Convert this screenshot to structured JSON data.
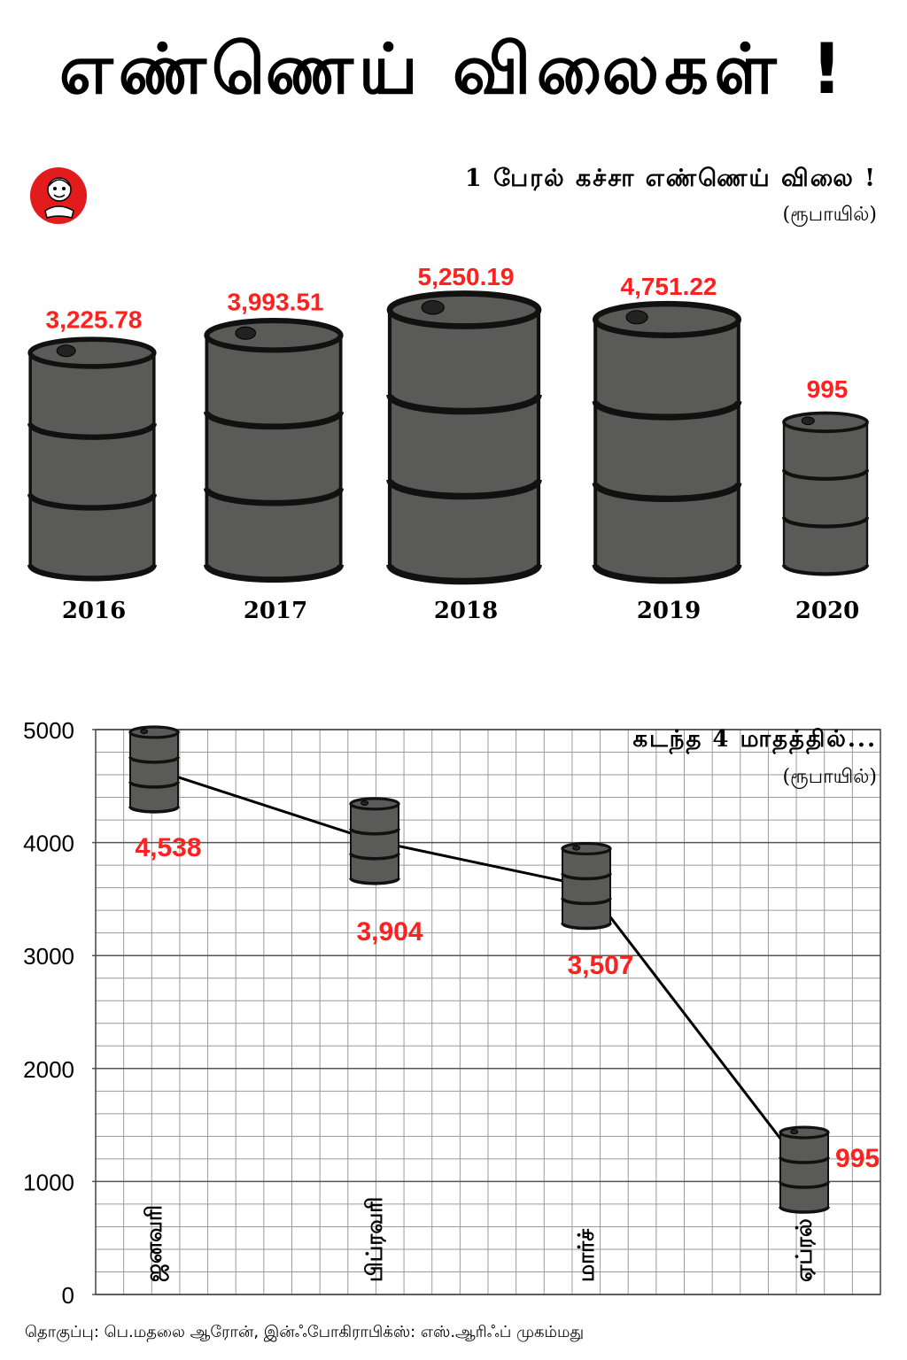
{
  "title": "எண்ணெய் விலைகள் !",
  "annual": {
    "title": "1 பேரல் கச்சா எண்ணெய் விலை !",
    "unit": "(ரூபாயில்)"
  },
  "monthly": {
    "title": "கடந்த 4 மாதத்தில்...",
    "unit": "(ரூபாயில்)"
  },
  "credit": "தொகுப்பு: பெ.மதலை ஆரோன், இன்ஃபோகிராபிக்ஸ்: எஸ்.ஆரிஃப் முகம்மது",
  "logo_icon": "jolly-face-logo-icon",
  "colors": {
    "barrel": "#5a5a58",
    "barrel_line": "#111111",
    "value_label": "#ff2020",
    "logo_red": "#e21c1c",
    "grid": "#9a9a9a"
  },
  "chart_data": [
    {
      "type": "bar",
      "categories": [
        "2016",
        "2017",
        "2018",
        "2019",
        "2020"
      ],
      "values": [
        3225.78,
        3993.51,
        5250.19,
        4751.22,
        995
      ],
      "value_labels": [
        "3,225.78",
        "3,993.51",
        "5,250.19",
        "4,751.22",
        "995"
      ],
      "title": "1 பேரல் கச்சா எண்ணெய் விலை !",
      "ylabel": "(ரூபாயில்)",
      "mark": "oil-barrel"
    },
    {
      "type": "line",
      "categories": [
        "ஜனவரி",
        "பிப்ரவரி",
        "மார்ச்",
        "ஏப்ரல்"
      ],
      "values": [
        4538,
        3904,
        3507,
        995
      ],
      "value_labels": [
        "4,538",
        "3,904",
        "3,507",
        "995"
      ],
      "title": "கடந்த 4 மாதத்தில்...",
      "ylabel": "(ரூபாயில்)",
      "y_ticks": [
        "0",
        "1000",
        "2000",
        "3000",
        "4000",
        "5000"
      ],
      "ylim": [
        0,
        5000
      ],
      "grid": true,
      "mark": "oil-barrel"
    }
  ]
}
